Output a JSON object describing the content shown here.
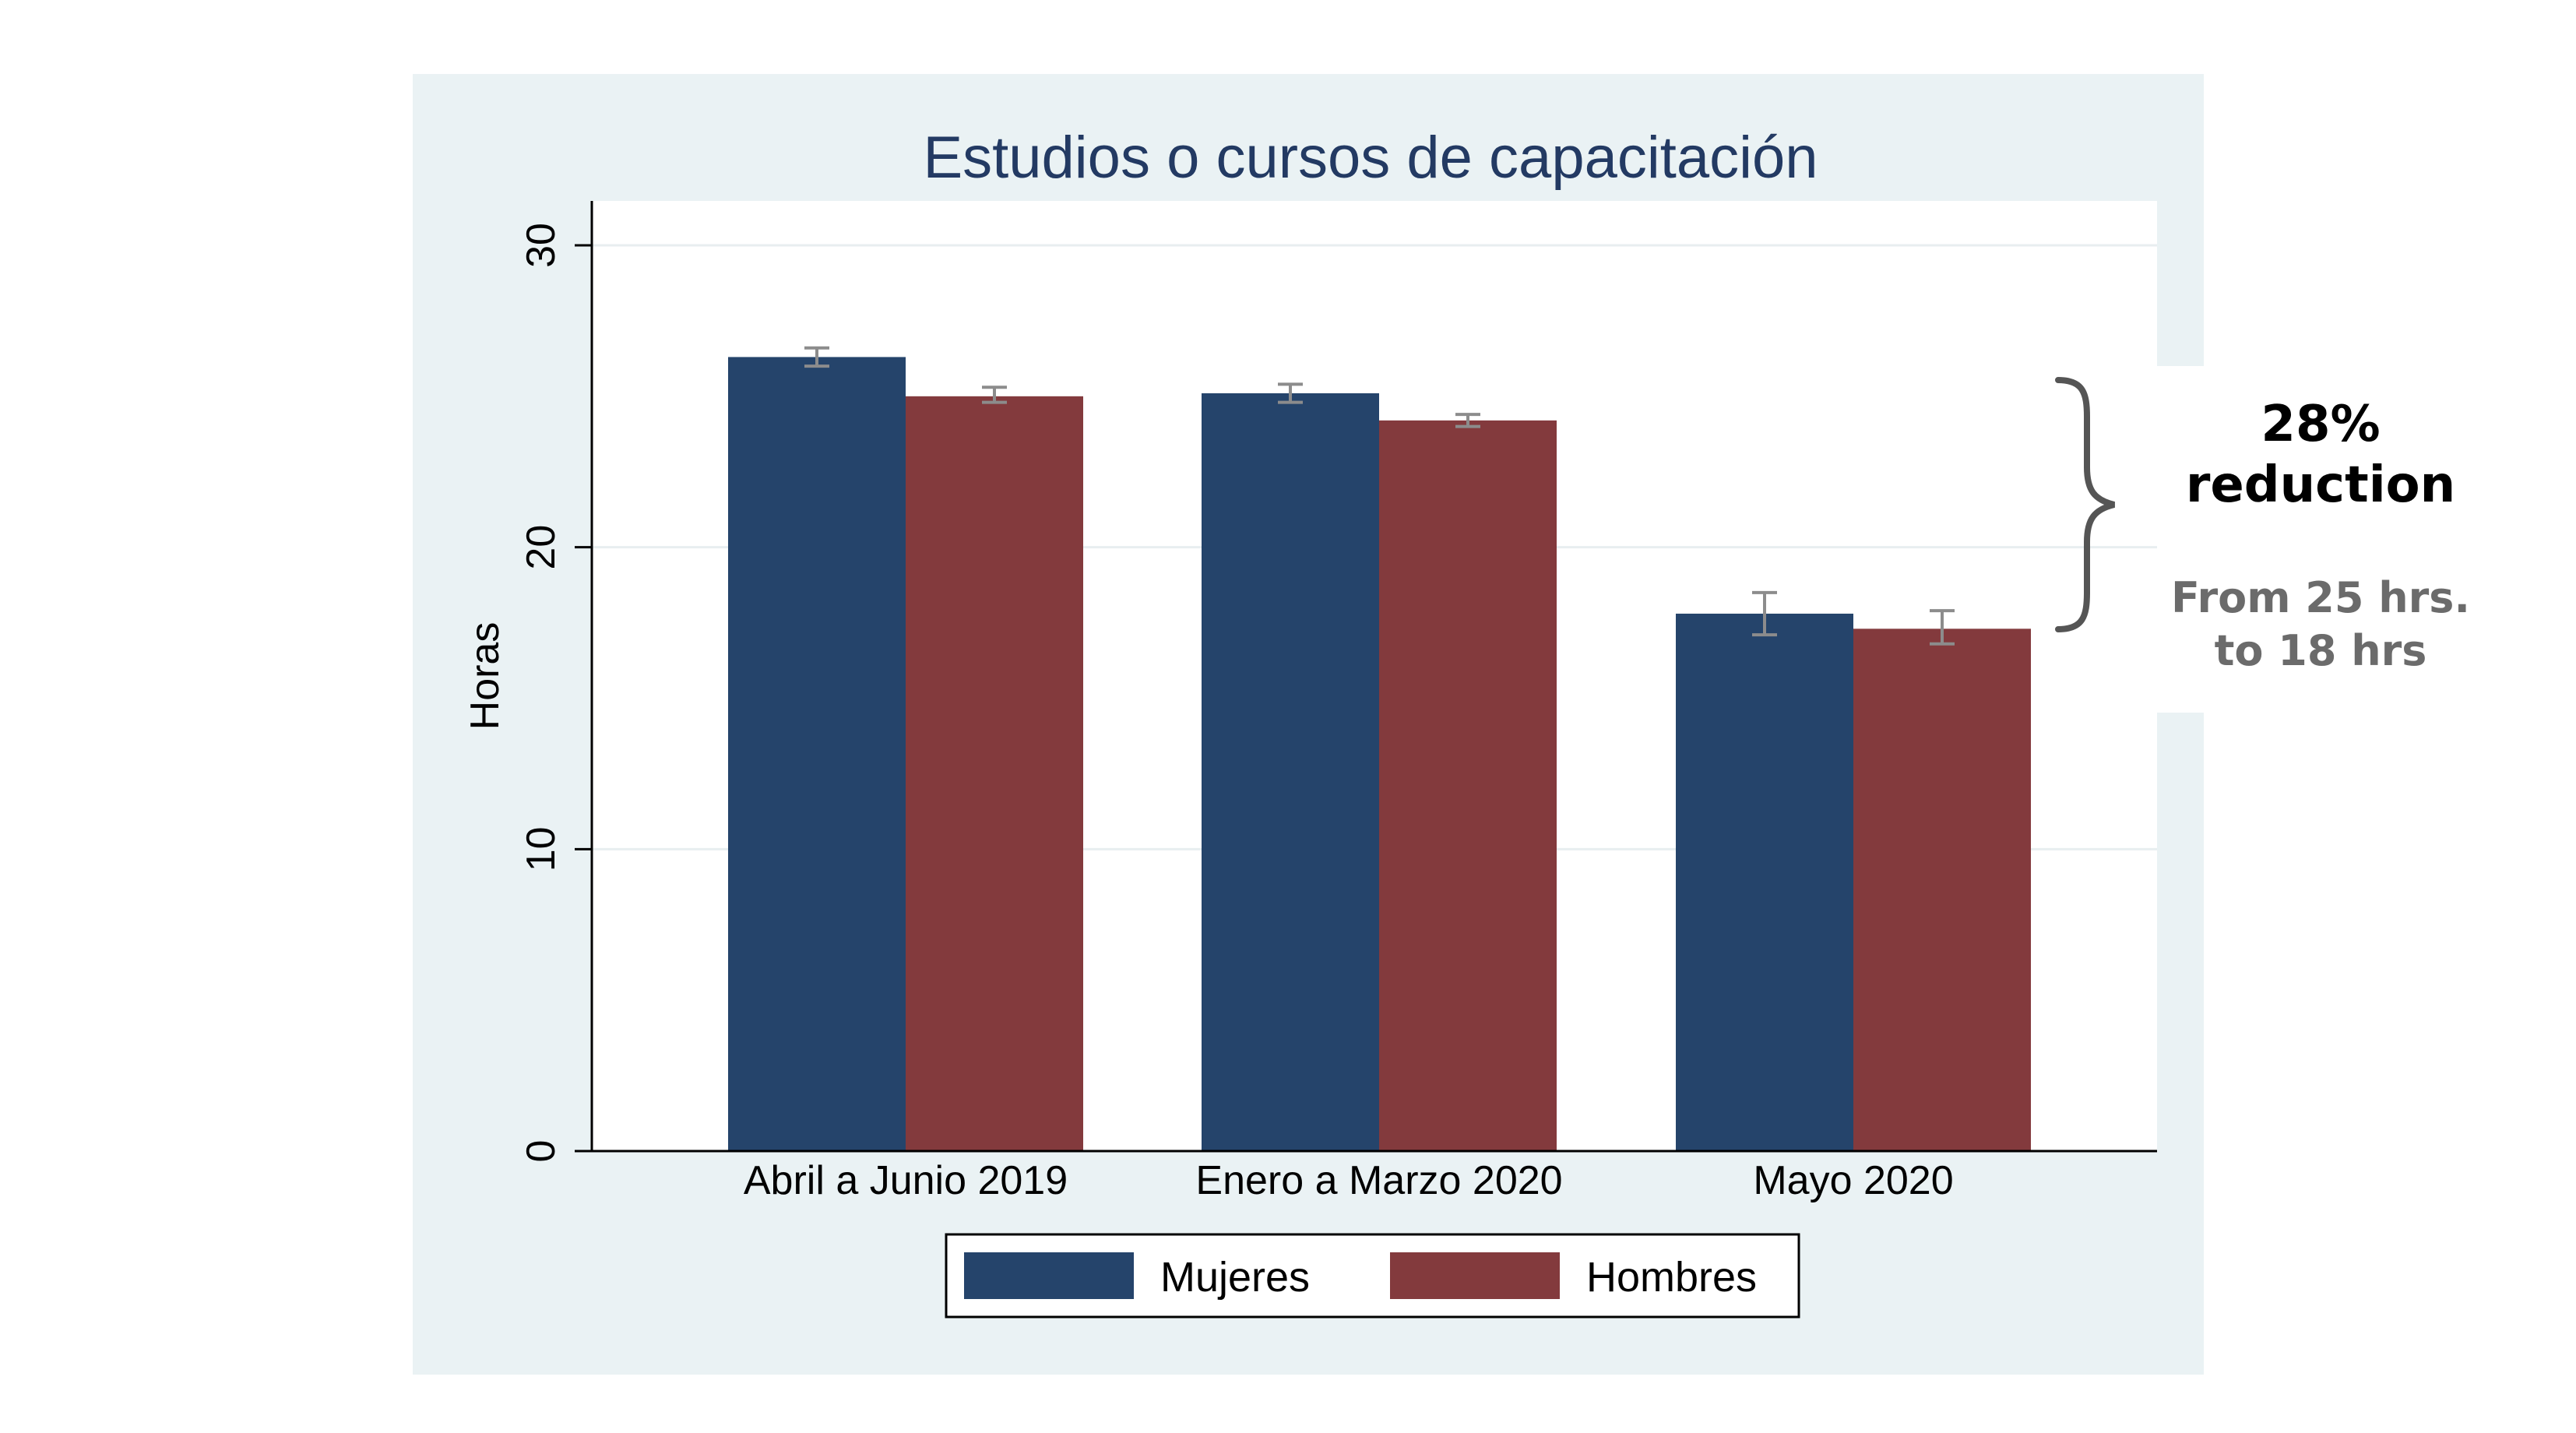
{
  "chart_data": {
    "type": "bar",
    "title": "Estudios o cursos de capacitación",
    "ylabel": "Horas",
    "xlabel": "",
    "ylim": [
      0,
      30
    ],
    "yticks": [
      0,
      10,
      20,
      30
    ],
    "grid": true,
    "legend_position": "bottom",
    "categories": [
      "Abril a Junio 2019",
      "Enero a Marzo 2020",
      "Mayo 2020"
    ],
    "series": [
      {
        "name": "Mujeres",
        "color": "#25446b",
        "values": [
          26.3,
          25.1,
          17.8
        ],
        "ci_low": [
          26.0,
          24.8,
          17.1
        ],
        "ci_high": [
          26.6,
          25.4,
          18.5
        ]
      },
      {
        "name": "Hombres",
        "color": "#833a3d",
        "values": [
          25.0,
          24.2,
          17.3
        ],
        "ci_low": [
          24.8,
          24.0,
          16.8
        ],
        "ci_high": [
          25.3,
          24.4,
          17.9
        ]
      }
    ],
    "colors": {
      "panel": "#eaf2f4",
      "plot": "#ffffff",
      "title": "#233a63",
      "grid": "#e8eef0",
      "errorbar": "#8c8c8c",
      "axis": "#000000"
    }
  },
  "annotation": {
    "headline": [
      "28%",
      "reduction"
    ],
    "detail": [
      "From 25 hrs.",
      "to 18 hrs"
    ],
    "brace_color": "#555555"
  }
}
